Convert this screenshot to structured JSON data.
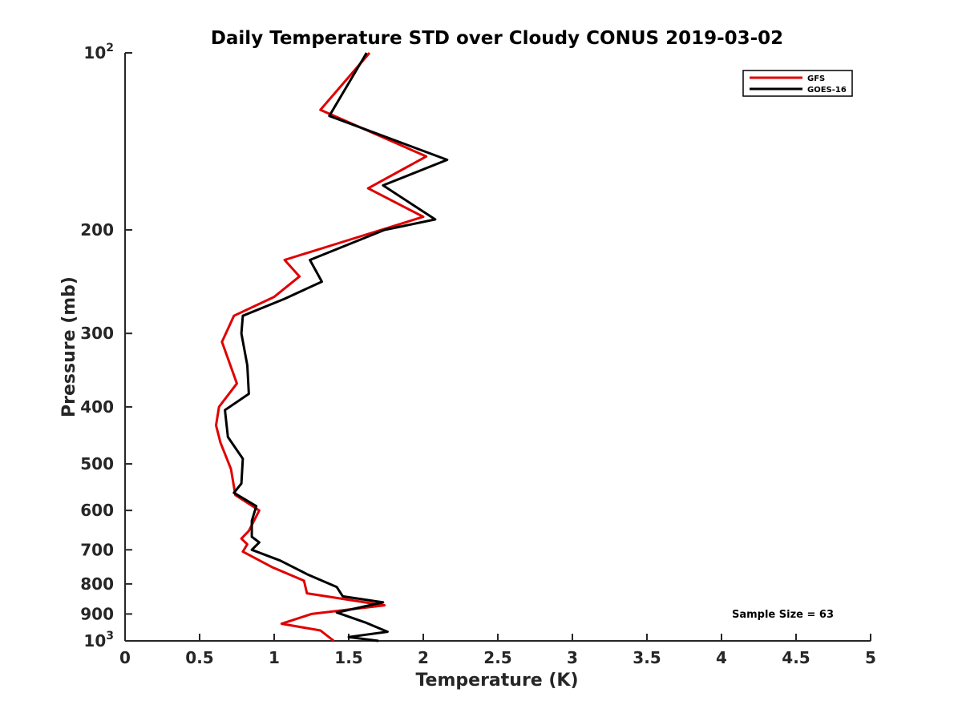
{
  "chart_data": {
    "type": "line",
    "title": "Daily Temperature STD over Cloudy CONUS 2019-03-02",
    "xlabel": "Temperature (K)",
    "ylabel": "Pressure (mb)",
    "xlim": [
      0,
      5
    ],
    "ylim": [
      100,
      1000
    ],
    "y_scale": "log",
    "y_direction": "reversed",
    "grid": false,
    "legend_position": "top-right",
    "x_ticks": [
      {
        "value": 0,
        "label": "0"
      },
      {
        "value": 0.5,
        "label": "0.5"
      },
      {
        "value": 1,
        "label": "1"
      },
      {
        "value": 1.5,
        "label": "1.5"
      },
      {
        "value": 2,
        "label": "2"
      },
      {
        "value": 2.5,
        "label": "2.5"
      },
      {
        "value": 3,
        "label": "3"
      },
      {
        "value": 3.5,
        "label": "3.5"
      },
      {
        "value": 4,
        "label": "4"
      },
      {
        "value": 4.5,
        "label": "4.5"
      },
      {
        "value": 5,
        "label": "5"
      }
    ],
    "y_ticks": [
      {
        "value": 100,
        "label": "10",
        "sup": "2"
      },
      {
        "value": 200,
        "label": "200",
        "sup": ""
      },
      {
        "value": 300,
        "label": "300",
        "sup": ""
      },
      {
        "value": 400,
        "label": "400",
        "sup": ""
      },
      {
        "value": 500,
        "label": "500",
        "sup": ""
      },
      {
        "value": 600,
        "label": "600",
        "sup": ""
      },
      {
        "value": 700,
        "label": "700",
        "sup": ""
      },
      {
        "value": 800,
        "label": "800",
        "sup": ""
      },
      {
        "value": 900,
        "label": "900",
        "sup": ""
      },
      {
        "value": 1000,
        "label": "10",
        "sup": "3"
      }
    ],
    "series": [
      {
        "name": "GFS",
        "color": "#e00000",
        "points": [
          [
            1.64,
            100
          ],
          [
            1.31,
            125
          ],
          [
            2.02,
            150
          ],
          [
            1.63,
            170
          ],
          [
            2.0,
            190
          ],
          [
            1.45,
            210
          ],
          [
            1.07,
            225
          ],
          [
            1.17,
            240
          ],
          [
            1.0,
            260
          ],
          [
            0.73,
            280
          ],
          [
            0.65,
            310
          ],
          [
            0.75,
            365
          ],
          [
            0.63,
            400
          ],
          [
            0.61,
            430
          ],
          [
            0.64,
            460
          ],
          [
            0.71,
            510
          ],
          [
            0.74,
            565
          ],
          [
            0.9,
            600
          ],
          [
            0.83,
            650
          ],
          [
            0.78,
            670
          ],
          [
            0.82,
            685
          ],
          [
            0.79,
            705
          ],
          [
            0.99,
            750
          ],
          [
            1.2,
            790
          ],
          [
            1.22,
            830
          ],
          [
            1.74,
            870
          ],
          [
            1.25,
            900
          ],
          [
            1.05,
            935
          ],
          [
            1.31,
            960
          ],
          [
            1.4,
            1000
          ]
        ]
      },
      {
        "name": "GOES-16",
        "color": "#000000",
        "points": [
          [
            1.62,
            100
          ],
          [
            1.37,
            128
          ],
          [
            2.16,
            152
          ],
          [
            1.73,
            168
          ],
          [
            2.08,
            192
          ],
          [
            1.74,
            200
          ],
          [
            1.24,
            225
          ],
          [
            1.32,
            245
          ],
          [
            1.07,
            262
          ],
          [
            0.79,
            280
          ],
          [
            0.78,
            300
          ],
          [
            0.82,
            340
          ],
          [
            0.83,
            380
          ],
          [
            0.67,
            405
          ],
          [
            0.69,
            450
          ],
          [
            0.79,
            490
          ],
          [
            0.78,
            540
          ],
          [
            0.73,
            560
          ],
          [
            0.88,
            590
          ],
          [
            0.85,
            625
          ],
          [
            0.85,
            665
          ],
          [
            0.9,
            680
          ],
          [
            0.85,
            700
          ],
          [
            1.04,
            730
          ],
          [
            1.22,
            770
          ],
          [
            1.42,
            810
          ],
          [
            1.46,
            840
          ],
          [
            1.73,
            860
          ],
          [
            1.42,
            895
          ],
          [
            1.61,
            930
          ],
          [
            1.76,
            965
          ],
          [
            1.5,
            985
          ],
          [
            1.7,
            1000
          ]
        ]
      }
    ],
    "annotations": [
      "Sample Size = 63"
    ]
  }
}
